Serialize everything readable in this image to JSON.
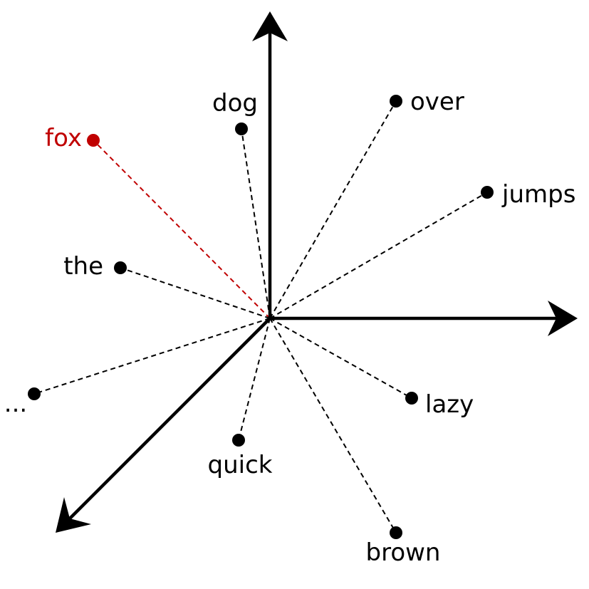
{
  "colors": {
    "default": "#000000",
    "highlight": "#c00000"
  },
  "words": [
    {
      "id": "fox",
      "label": "fox",
      "highlighted": true
    },
    {
      "id": "dog",
      "label": "dog",
      "highlighted": false
    },
    {
      "id": "over",
      "label": "over",
      "highlighted": false
    },
    {
      "id": "jumps",
      "label": "jumps",
      "highlighted": false
    },
    {
      "id": "the",
      "label": "the",
      "highlighted": false
    },
    {
      "id": "more",
      "label": "...",
      "highlighted": false
    },
    {
      "id": "lazy",
      "label": "lazy",
      "highlighted": false
    },
    {
      "id": "quick",
      "label": "quick",
      "highlighted": false
    },
    {
      "id": "brown",
      "label": "brown",
      "highlighted": false
    }
  ]
}
